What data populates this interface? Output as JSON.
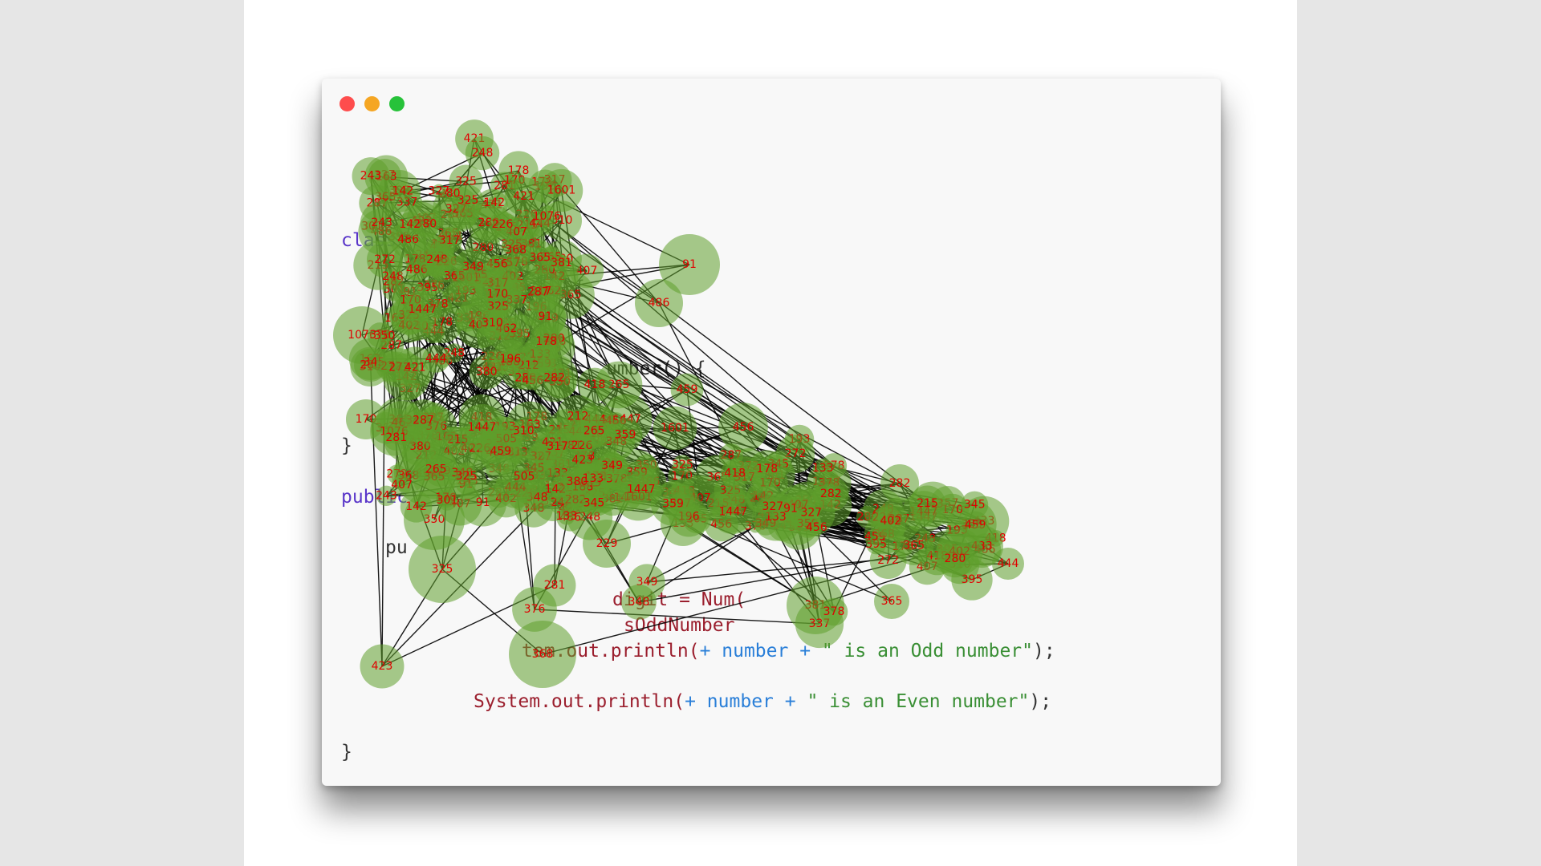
{
  "window": {
    "code_lines": [
      {
        "id": "l1",
        "tokens": [
          {
            "t": "class",
            "c": "kw"
          }
        ]
      },
      {
        "id": "l2",
        "tokens": [
          {
            "t": "{",
            "c": ""
          }
        ]
      },
      {
        "id": "l3",
        "tokens": [
          {
            "t": "umber() {",
            "c": ""
          }
        ]
      },
      {
        "id": "l4",
        "tokens": [
          {
            "t": "}",
            "c": ""
          }
        ]
      },
      {
        "id": "l5",
        "tokens": [
          {
            "t": "public",
            "c": "kw"
          }
        ]
      },
      {
        "id": "l6",
        "tokens": [
          {
            "t": "pu",
            "c": ""
          }
        ]
      },
      {
        "id": "l7",
        "tokens": [
          {
            "t": "digit = ",
            "c": "fn"
          },
          {
            "t": "Num(",
            "c": "fn"
          }
        ]
      },
      {
        "id": "l8",
        "tokens": [
          {
            "t": "sOddNumber",
            "c": "fn"
          }
        ]
      },
      {
        "id": "l9",
        "tokens": [
          {
            "t": "tem.out.println(",
            "c": "fn"
          },
          {
            "t": "+ number ",
            "c": "op"
          },
          {
            "t": "+ ",
            "c": "op"
          },
          {
            "t": "\" is an Odd number\"",
            "c": "str"
          },
          {
            "t": ");",
            "c": ""
          }
        ]
      },
      {
        "id": "l10",
        "tokens": [
          {
            "t": "System.out.println(",
            "c": "fn"
          },
          {
            "t": "+ number ",
            "c": "op"
          },
          {
            "t": "+ ",
            "c": "op"
          },
          {
            "t": "\" is an Even number\"",
            "c": "str"
          },
          {
            "t": ");",
            "c": ""
          }
        ]
      },
      {
        "id": "l11",
        "tokens": [
          {
            "t": "}",
            "c": ""
          }
        ]
      }
    ]
  },
  "graph": {
    "node_color": "#5e9e2c",
    "label_color": "#e00000",
    "edge_color": "#000000",
    "nodes": [
      {
        "id": "421",
        "label": "421"
      },
      {
        "id": "248",
        "label": "248"
      },
      {
        "id": "178",
        "label": "178"
      },
      {
        "id": "91",
        "label": "91"
      },
      {
        "id": "486",
        "label": "486"
      },
      {
        "id": "407",
        "label": "407"
      },
      {
        "id": "380",
        "label": "380"
      },
      {
        "id": "365",
        "label": "365"
      },
      {
        "id": "265",
        "label": "265"
      },
      {
        "id": "418",
        "label": "418"
      },
      {
        "id": "459",
        "label": "459"
      },
      {
        "id": "1447",
        "label": "1447"
      },
      {
        "id": "1601",
        "label": "1601"
      },
      {
        "id": "456",
        "label": "456"
      },
      {
        "id": "193",
        "label": "193"
      },
      {
        "id": "282",
        "label": "282"
      },
      {
        "id": "357",
        "label": "357"
      },
      {
        "id": "433",
        "label": "433"
      },
      {
        "id": "359",
        "label": "359"
      },
      {
        "id": "378",
        "label": "378"
      },
      {
        "id": "310",
        "label": "310"
      },
      {
        "id": "444",
        "label": "444"
      },
      {
        "id": "395",
        "label": "395"
      },
      {
        "id": "365b",
        "label": "365"
      },
      {
        "id": "381",
        "label": "381"
      },
      {
        "id": "337",
        "label": "337"
      },
      {
        "id": "378b",
        "label": "378"
      },
      {
        "id": "349",
        "label": "349"
      },
      {
        "id": "348",
        "label": "348"
      },
      {
        "id": "376",
        "label": "376"
      },
      {
        "id": "368",
        "label": "368"
      },
      {
        "id": "423",
        "label": "423"
      },
      {
        "id": "281",
        "label": "281"
      },
      {
        "id": "170",
        "label": "170"
      },
      {
        "id": "1076",
        "label": "1076"
      },
      {
        "id": "462",
        "label": "462"
      },
      {
        "id": "325",
        "label": "325"
      },
      {
        "id": "212",
        "label": "212"
      },
      {
        "id": "280",
        "label": "280"
      },
      {
        "id": "345",
        "label": "345"
      },
      {
        "id": "505",
        "label": "505"
      },
      {
        "id": "272",
        "label": "272"
      },
      {
        "id": "243",
        "label": "243"
      },
      {
        "id": "301",
        "label": "301"
      },
      {
        "id": "188",
        "label": "188"
      },
      {
        "id": "215",
        "label": "215"
      },
      {
        "id": "327",
        "label": "327"
      },
      {
        "id": "402",
        "label": "402"
      },
      {
        "id": "163",
        "label": "163"
      },
      {
        "id": "317",
        "label": "317"
      },
      {
        "id": "142",
        "label": "142"
      },
      {
        "id": "226",
        "label": "226"
      },
      {
        "id": "350",
        "label": "350"
      },
      {
        "id": "196",
        "label": "196"
      },
      {
        "id": "287",
        "label": "287"
      },
      {
        "id": "133",
        "label": "133"
      },
      {
        "id": "229",
        "label": "229"
      }
    ]
  }
}
